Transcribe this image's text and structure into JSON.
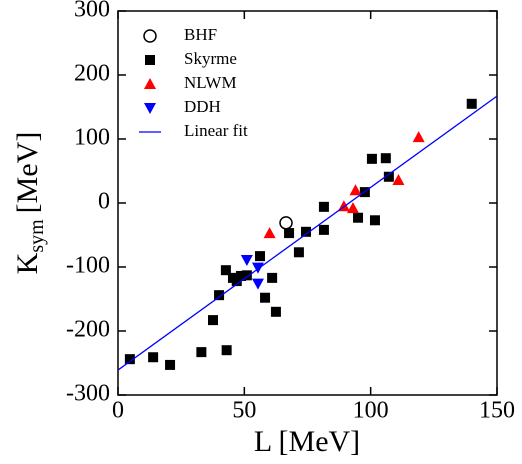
{
  "chart_data": {
    "type": "scatter",
    "xlabel": "L [MeV]",
    "ylabel": {
      "base": "K",
      "sub": "sym",
      "unit": "[MeV]"
    },
    "xlim": [
      0,
      150
    ],
    "xticks": [
      0,
      50,
      100,
      150
    ],
    "ylim": [
      -300,
      300
    ],
    "yticks": [
      -300,
      -200,
      -100,
      0,
      100,
      200,
      300
    ],
    "legend": "upper left",
    "series": [
      {
        "name": "BHF",
        "color": "#000000",
        "marker": "circle-open",
        "x": [
          66.5
        ],
        "values": [
          -31
        ]
      },
      {
        "name": "Skyrme",
        "color": "#000000",
        "marker": "square",
        "x": [
          4.7,
          13.9,
          20.6,
          33,
          43,
          37.6,
          40,
          42.7,
          45.5,
          47,
          48.7,
          51,
          56.2,
          58.2,
          61,
          62.5,
          67.7,
          71.6,
          74.4,
          81.5,
          81.5,
          95,
          97.7,
          100.5,
          101.7,
          106,
          107.2,
          140
        ],
        "values": [
          -244,
          -241,
          -253,
          -233,
          -230,
          -183,
          -144,
          -105,
          -117,
          -122,
          -114,
          -113,
          -83,
          -148,
          -117,
          -170,
          -47,
          -77,
          -45,
          -42,
          -6,
          -23,
          17,
          69,
          -27,
          70,
          41,
          155
        ]
      },
      {
        "name": "NLWM",
        "color": "#ff0000",
        "marker": "triangle-up",
        "x": [
          60,
          89.4,
          93,
          94,
          111,
          119
        ],
        "values": [
          -47,
          -5,
          -8,
          20,
          36,
          103
        ]
      },
      {
        "name": "DDH",
        "color": "#0000ff",
        "marker": "triangle-down",
        "x": [
          51,
          55.4,
          55.4
        ],
        "values": [
          -89,
          -101,
          -126
        ]
      },
      {
        "name": "Linear fit",
        "color": "#0000ff",
        "marker": "line",
        "x": [
          0,
          150
        ],
        "values": [
          -261,
          167
        ]
      }
    ]
  }
}
